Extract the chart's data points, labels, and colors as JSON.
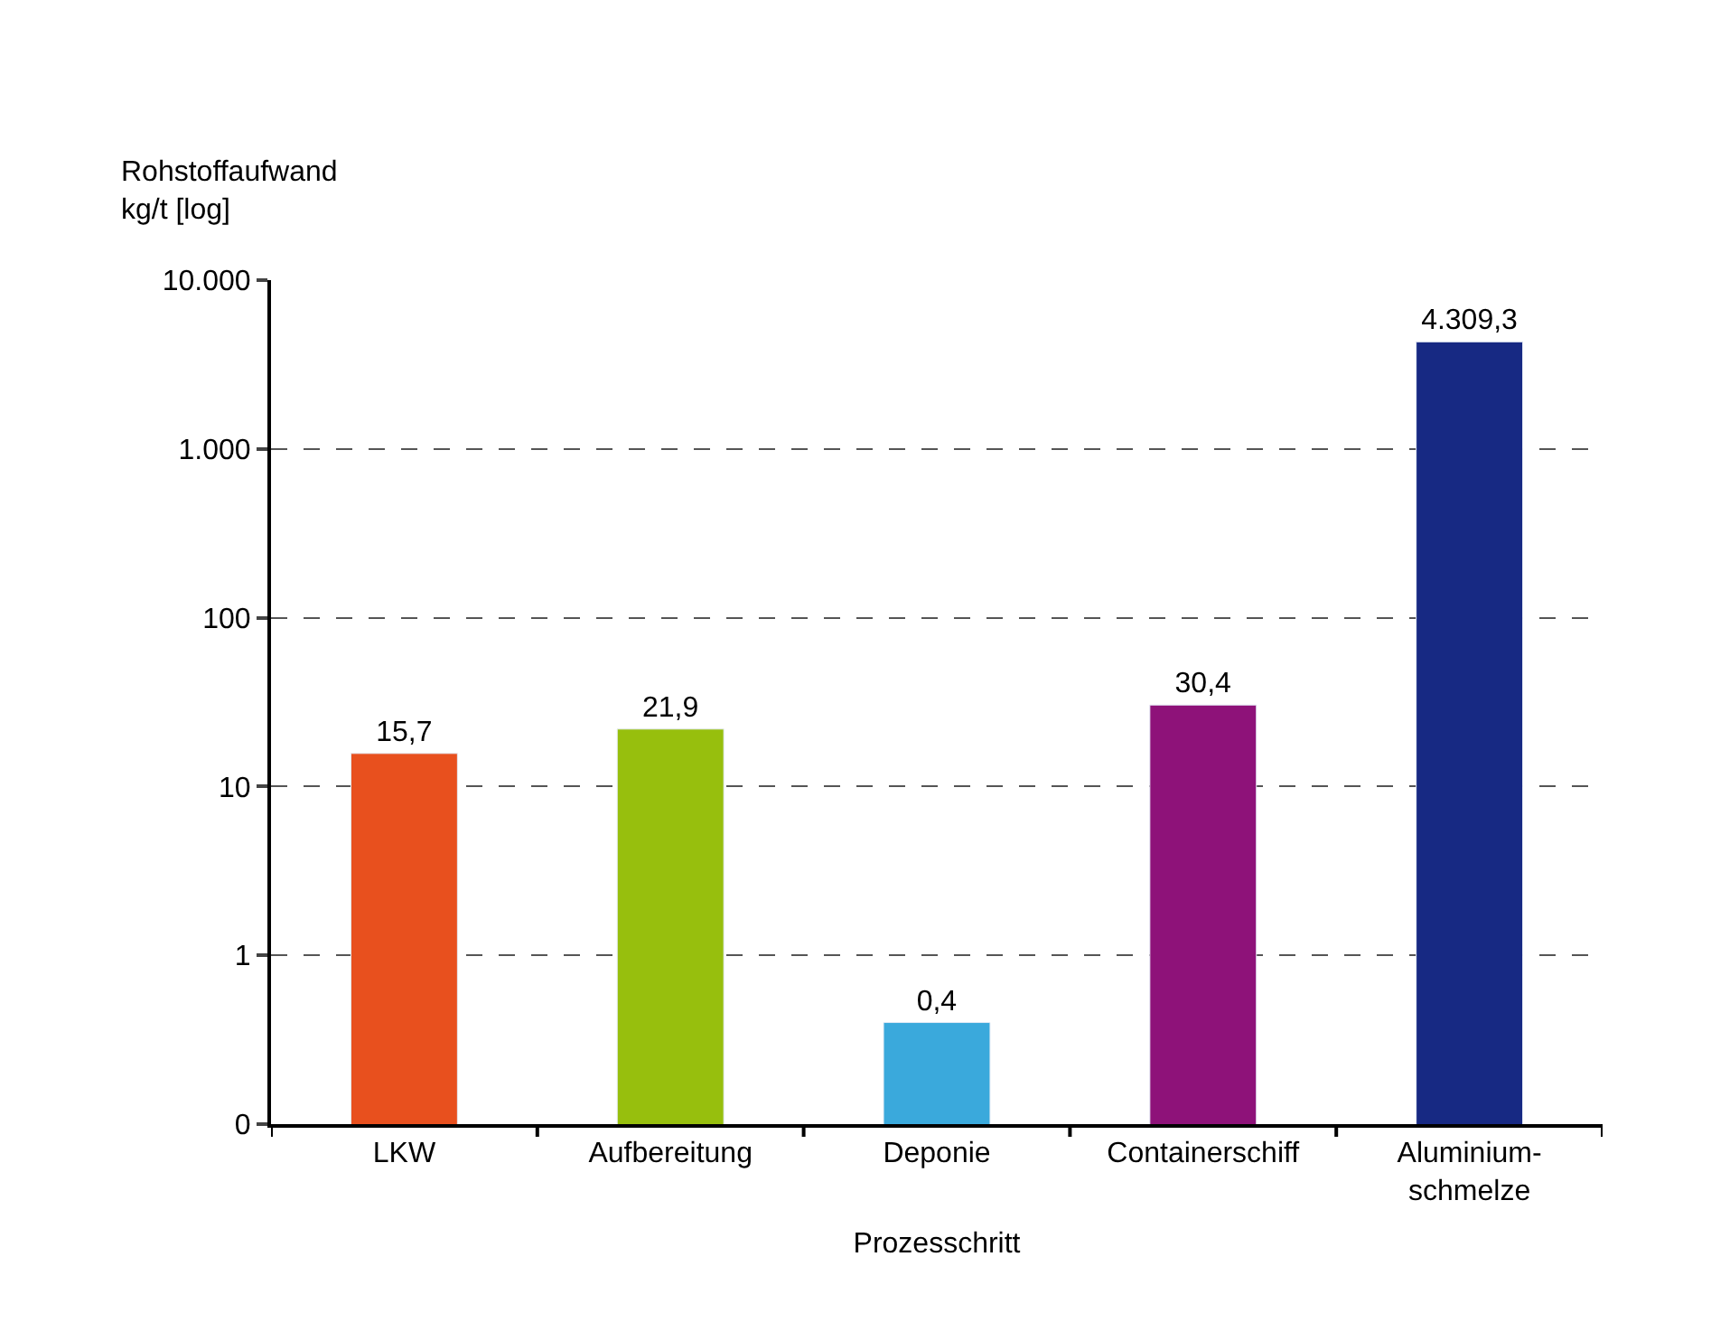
{
  "chart_data": {
    "type": "bar",
    "xlabel": "Prozesschritt",
    "ylabel": "Rohstoffaufwand\nkg/t [log]",
    "categories": [
      "LKW",
      "Aufbereitung",
      "Deponie",
      "Containerschiff",
      "Aluminium-\nschmelze"
    ],
    "values": [
      15.7,
      21.9,
      0.4,
      30.4,
      4309.3
    ],
    "value_labels": [
      "15,7",
      "21,9",
      "0,4",
      "30,4",
      "4.309,3"
    ],
    "colors": [
      "#e8501e",
      "#97bf0d",
      "#3aa9dc",
      "#8e1279",
      "#172983"
    ],
    "log": "y",
    "ylim": [
      0.1,
      10000
    ],
    "yticks": [
      {
        "value": 0.1,
        "label": "0"
      },
      1,
      10,
      100,
      {
        "value": 1000,
        "label": "1.000"
      },
      {
        "value": 10000,
        "label": "10.000"
      }
    ],
    "grid": "y",
    "legend": false
  }
}
